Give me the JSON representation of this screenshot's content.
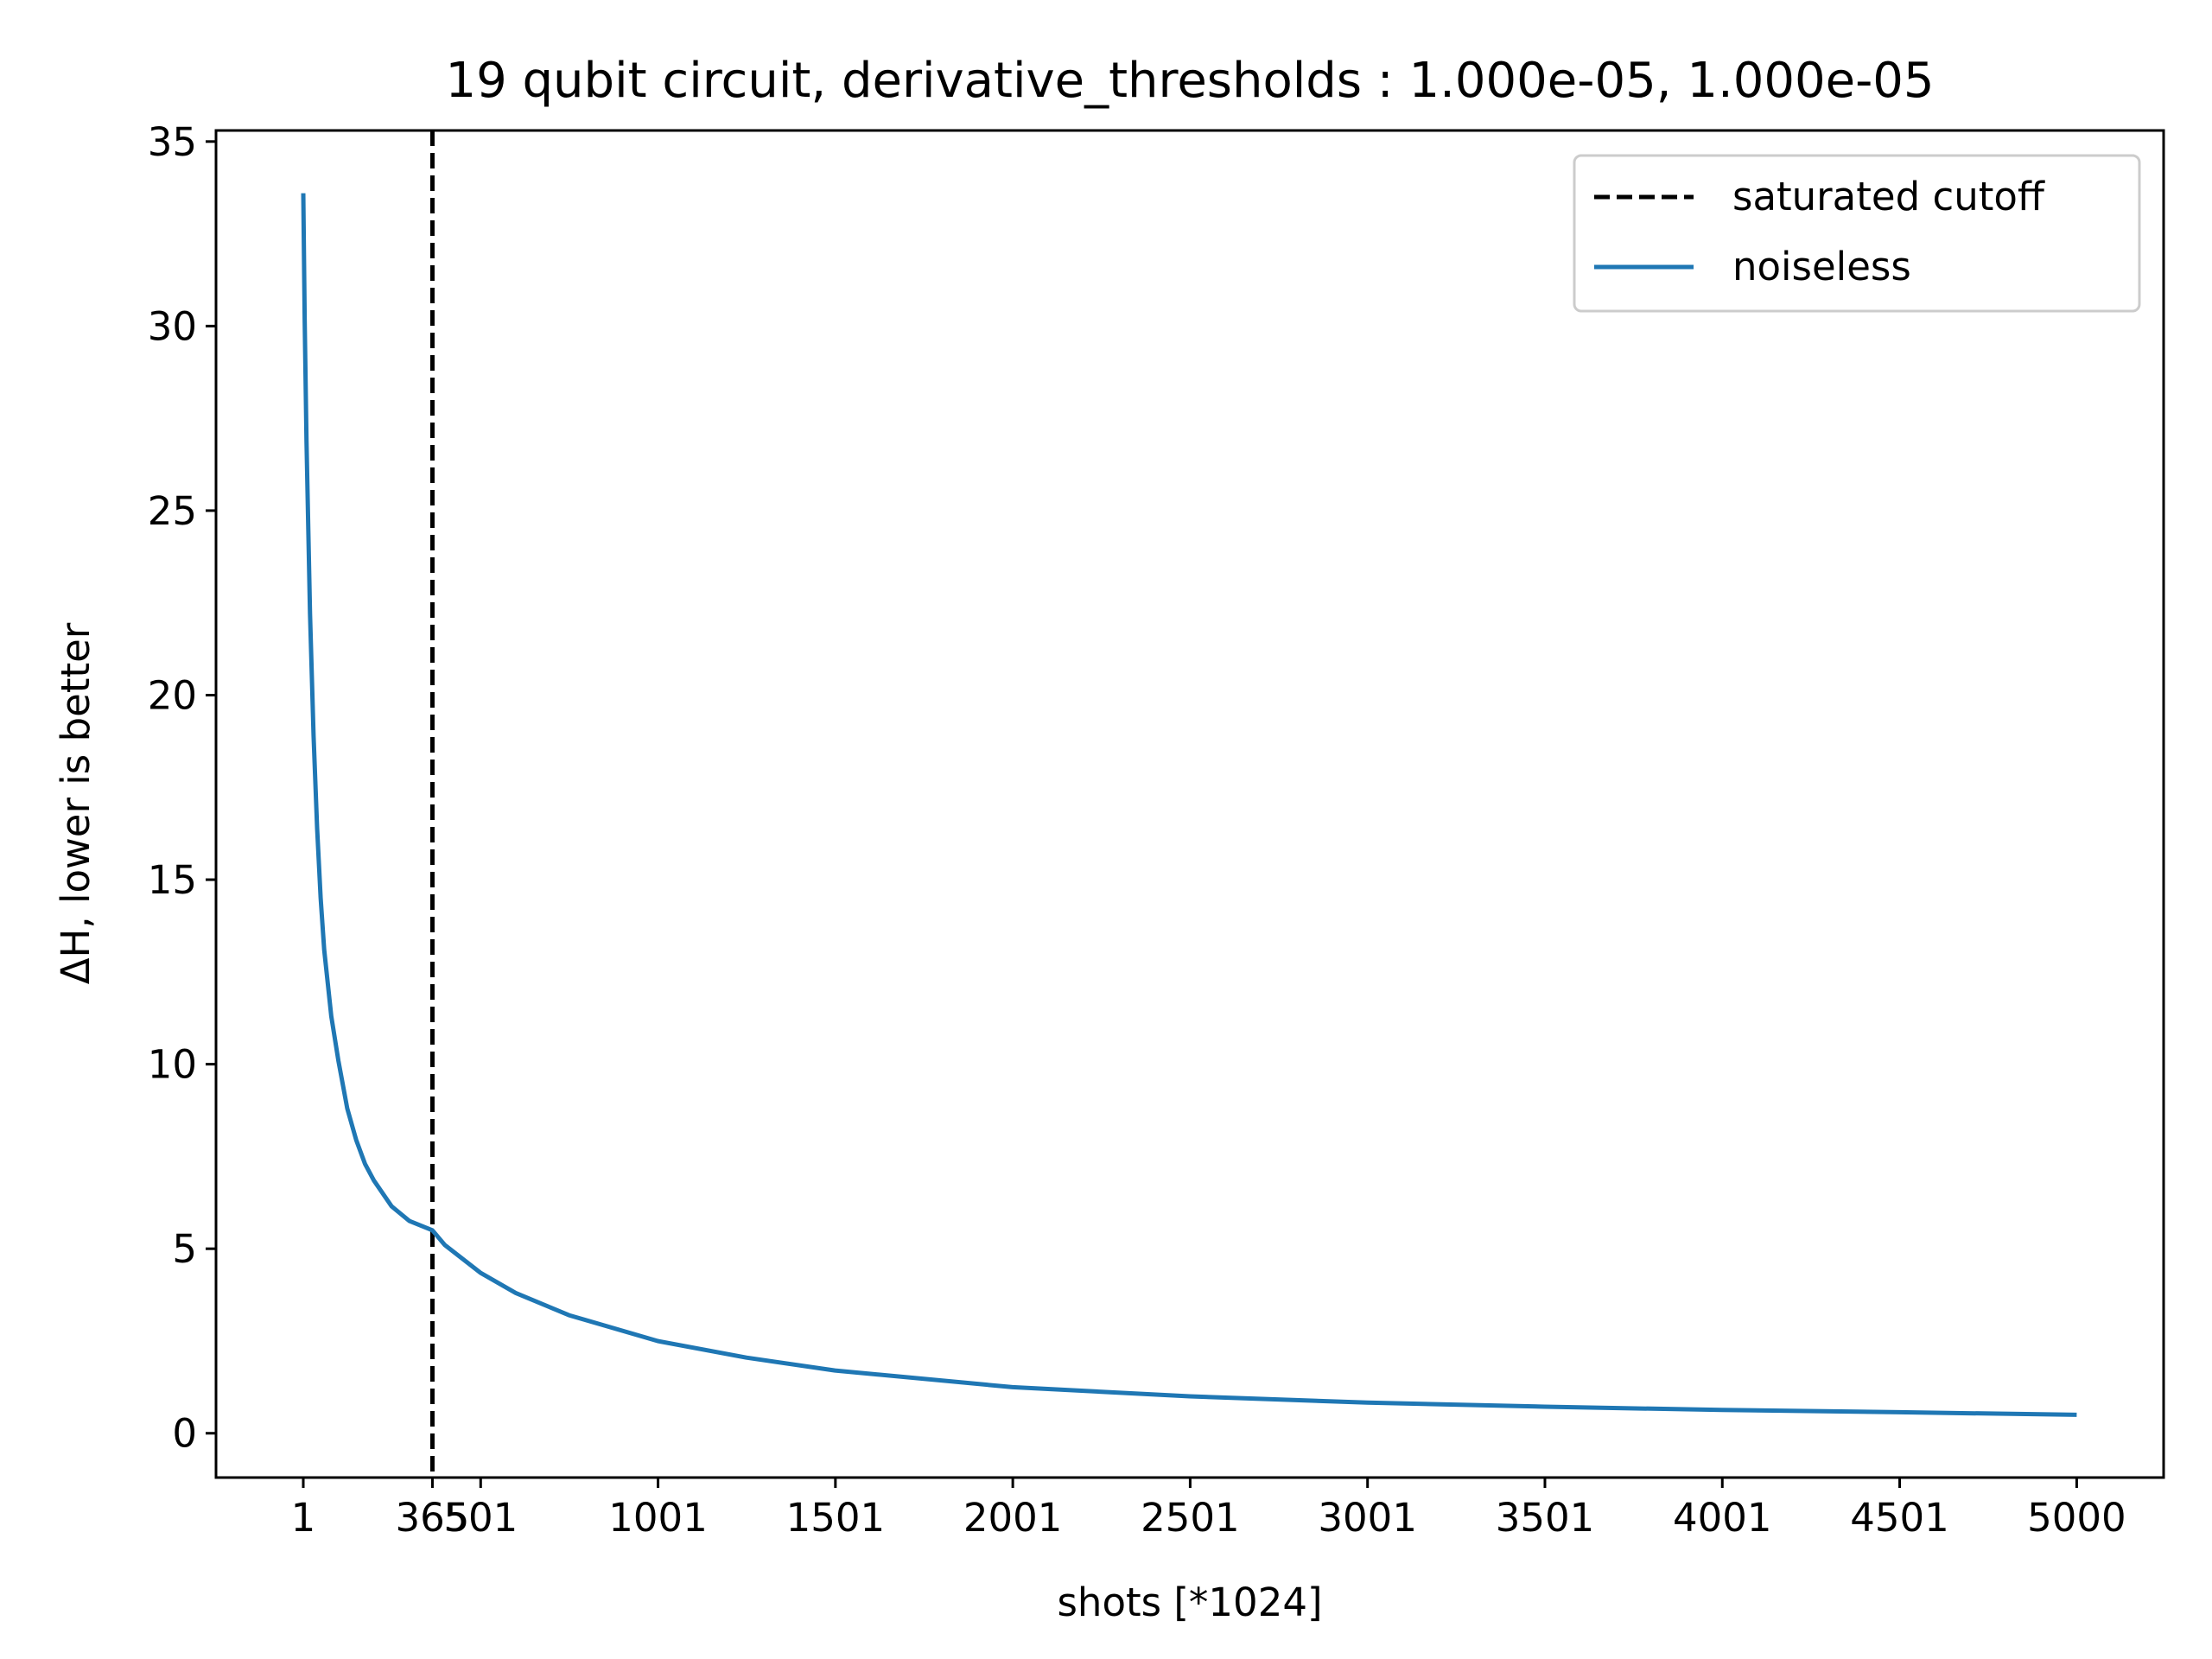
{
  "chart_data": {
    "type": "line",
    "title": "19 qubit circuit, derivative_thresholds : 1.000e-05, 1.000e-05",
    "xlabel": "shots [*1024]",
    "ylabel": "ΔH, lower is better",
    "xlim": [
      -245,
      5245
    ],
    "ylim": [
      -1.2,
      35.3
    ],
    "xticks": [
      1,
      365,
      501,
      1001,
      1501,
      2001,
      2501,
      3001,
      3501,
      4001,
      4501,
      5000
    ],
    "xtick_labels": [
      "1",
      "365",
      "501",
      "1001",
      "1501",
      "2001",
      "2501",
      "3001",
      "3501",
      "4001",
      "4501",
      "5000"
    ],
    "yticks": [
      0,
      5,
      10,
      15,
      20,
      25,
      30,
      35
    ],
    "ytick_labels": [
      "0",
      "5",
      "10",
      "15",
      "20",
      "25",
      "30",
      "35"
    ],
    "grid": false,
    "legend": "top-right",
    "vlines": [
      {
        "name": "saturated cutoff",
        "x": 365,
        "color": "#000000",
        "style": "dashed"
      }
    ],
    "series": [
      {
        "name": "noiseless",
        "color": "#1f77b4",
        "x": [
          1,
          5,
          10,
          20,
          30,
          40,
          50,
          60,
          80,
          100,
          125,
          150,
          175,
          200,
          250,
          300,
          365,
          400,
          500,
          600,
          750,
          1000,
          1250,
          1500,
          2000,
          2500,
          3000,
          3500,
          4000,
          4500,
          5000
        ],
        "y": [
          33.6,
          30.2,
          26.9,
          22.2,
          18.9,
          16.4,
          14.5,
          13.1,
          11.3,
          10.1,
          8.8,
          7.95,
          7.3,
          6.85,
          6.15,
          5.75,
          5.5,
          5.1,
          4.35,
          3.8,
          3.2,
          2.5,
          2.05,
          1.7,
          1.25,
          1.0,
          0.83,
          0.72,
          0.63,
          0.57,
          0.5
        ]
      }
    ]
  }
}
